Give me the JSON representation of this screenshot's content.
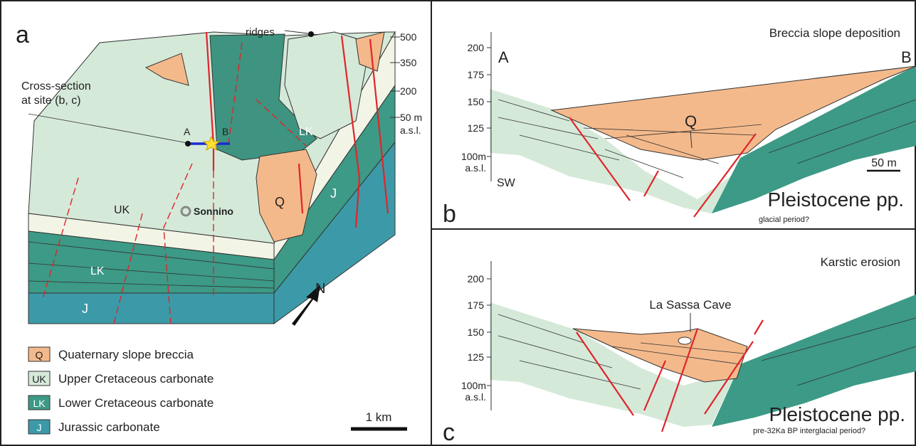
{
  "panel_a": {
    "label": "a",
    "ridges": "ridges",
    "elevations": [
      "500",
      "350",
      "200",
      "50 m",
      "a.s.l."
    ],
    "cross_section": [
      "Cross-section",
      "at site (b, c)"
    ],
    "map_labels": {
      "a_end": "A",
      "b_end": "B",
      "lk_top": "LK",
      "uk": "UK",
      "town": "Sonnino",
      "q": "Q",
      "j_side": "J",
      "lk_front": "LK",
      "j_front": "J"
    },
    "north": "N",
    "legend": [
      {
        "code": "Q",
        "label": "Quaternary slope breccia"
      },
      {
        "code": "UK",
        "label": "Upper Cretaceous carbonate"
      },
      {
        "code": "LK",
        "label": "Lower Cretaceous carbonate"
      },
      {
        "code": "J",
        "label": "Jurassic carbonate"
      }
    ],
    "scale": "1 km"
  },
  "panel_b": {
    "label": "b",
    "title": "Breccia slope deposition",
    "elevations": [
      "200",
      "175",
      "150",
      "125",
      "100m",
      "a.s.l."
    ],
    "end_labels": [
      "A",
      "B"
    ],
    "unit": "Q",
    "direction": "SW",
    "scale": "50 m",
    "period": "Pleistocene pp.",
    "note": "glacial period?"
  },
  "panel_c": {
    "label": "c",
    "title": "Karstic erosion",
    "elevations": [
      "200",
      "175",
      "150",
      "125",
      "100m",
      "a.s.l."
    ],
    "cave": "La Sassa Cave",
    "period": "Pleistocene pp.",
    "note": "pre-32Ka BP interglacial period?"
  }
}
